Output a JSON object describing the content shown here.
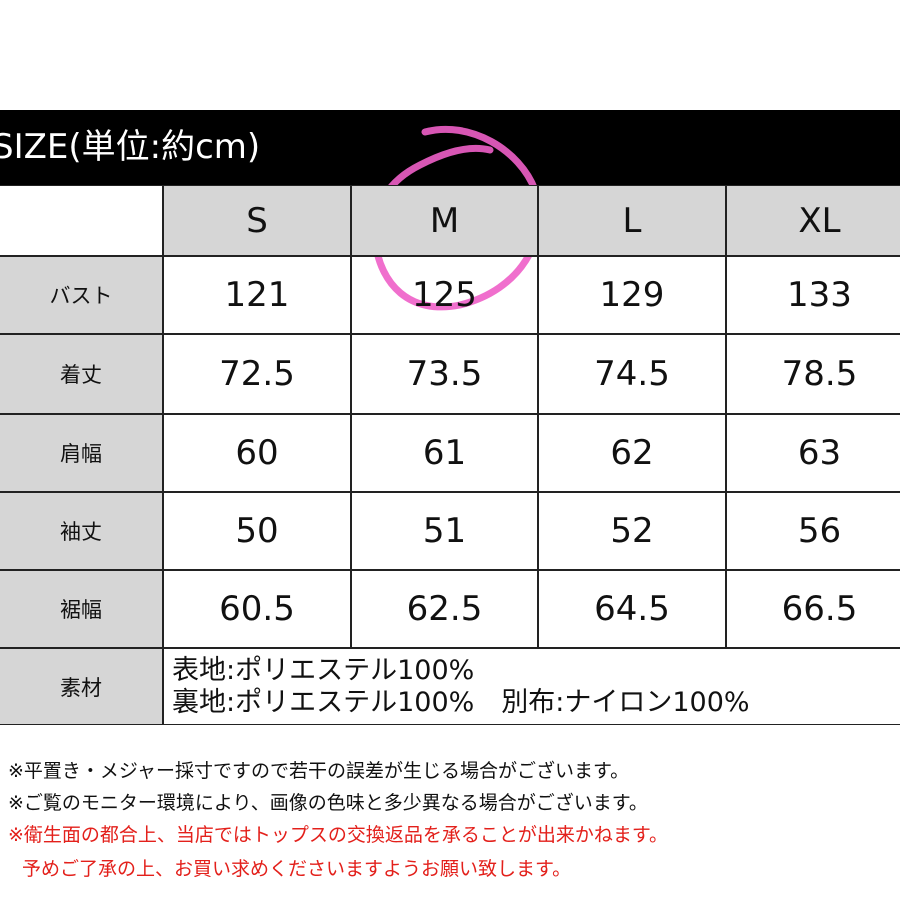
{
  "header": {
    "title": "SIZE(単位:約cm)"
  },
  "table": {
    "columns": [
      "S",
      "M",
      "L",
      "XL"
    ],
    "rows": [
      {
        "label": "バスト",
        "values": [
          121,
          125,
          129,
          133
        ]
      },
      {
        "label": "着丈",
        "values": [
          72.5,
          73.5,
          74.5,
          78.5
        ]
      },
      {
        "label": "肩幅",
        "values": [
          60,
          61,
          62,
          63
        ]
      },
      {
        "label": "袖丈",
        "values": [
          50,
          51,
          52,
          56
        ]
      },
      {
        "label": "裾幅",
        "values": [
          60.5,
          62.5,
          64.5,
          66.5
        ]
      }
    ],
    "material": {
      "label": "素材",
      "lines": [
        "表地:ポリエステル100%",
        "裏地:ポリエステル100%　別布:ナイロン100%"
      ]
    }
  },
  "notes": [
    "※平置き・メジャー採寸ですので若干の誤差が生じる場合がございます。",
    "※ご覧のモニター環境により、画像の色味と多少異なる場合がございます。",
    "※衛生面の都合上、当店ではトップスの交換返品を承ることが出来かねます。",
    "予めご了承の上、お買い求めくださいますようお願い致します。"
  ]
}
